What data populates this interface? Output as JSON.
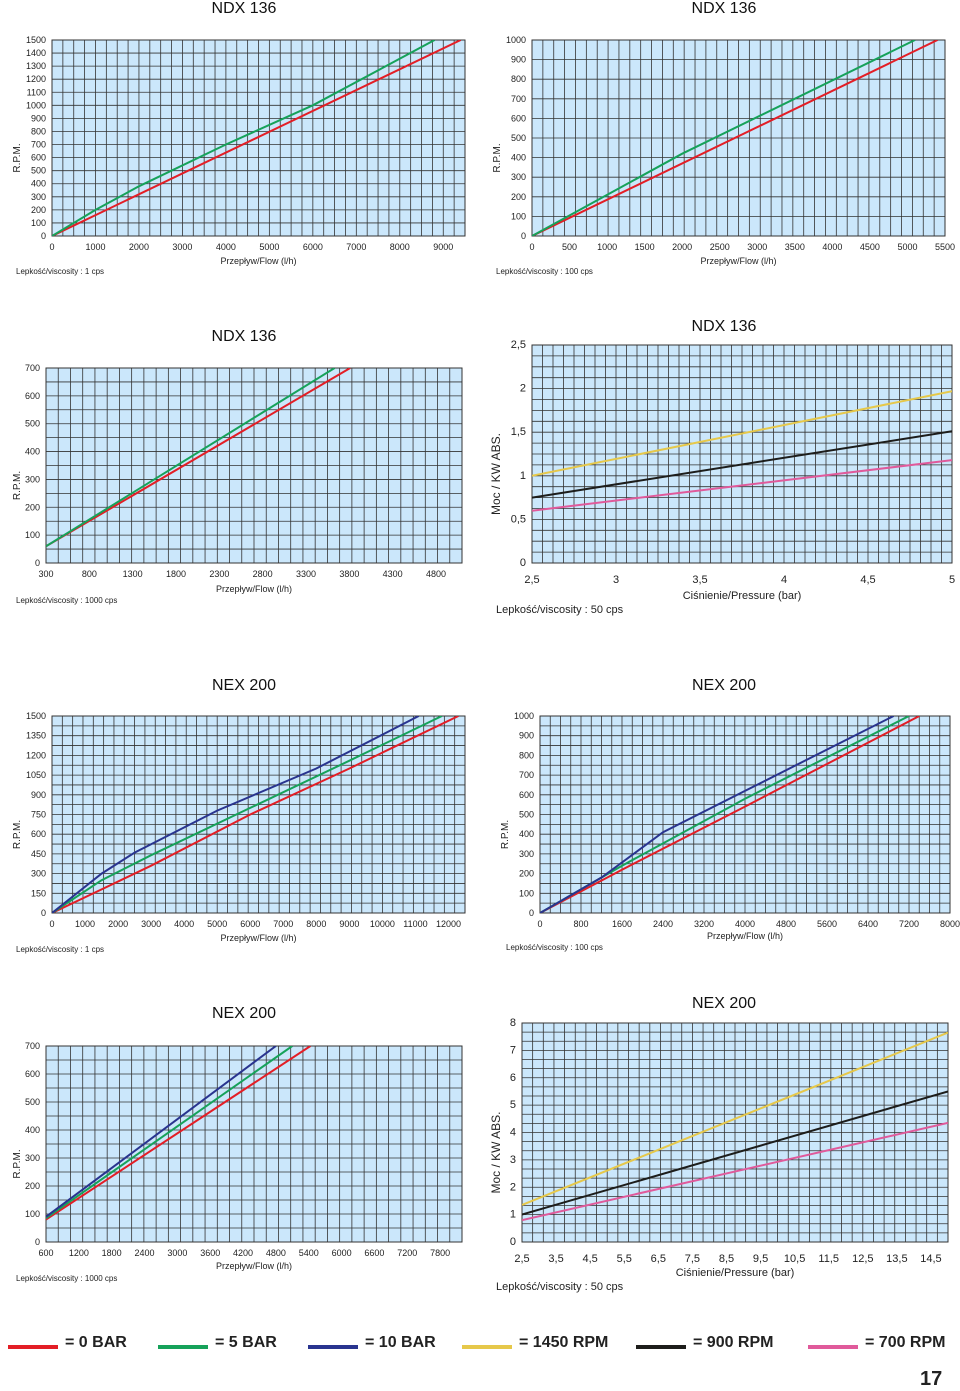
{
  "colors": {
    "grid_bg": "#cbe7fb",
    "grid_line": "#333333",
    "red": "#e31e26",
    "green": "#16a25a",
    "blue": "#29348f",
    "yellow": "#e6c84a",
    "black": "#1d1d1b",
    "pink": "#e05a9b"
  },
  "chart_data": [
    {
      "type": "line",
      "title": "NDX 136",
      "ylabel": "R.P.M.",
      "xlabel": "Przepływ/Flow (l/h)",
      "note": "Lepkość/viscosity : 1 cps",
      "xlim": [
        0,
        9500
      ],
      "ylim": [
        0,
        1500
      ],
      "xticks": [
        "0",
        "1000",
        "2000",
        "3000",
        "4000",
        "5000",
        "6000",
        "7000",
        "8000",
        "9000"
      ],
      "xtick_vals": [
        0,
        1000,
        2000,
        3000,
        4000,
        5000,
        6000,
        7000,
        8000,
        9000
      ],
      "yticks": [
        "0",
        "100",
        "200",
        "300",
        "400",
        "500",
        "600",
        "700",
        "800",
        "900",
        "1000",
        "1100",
        "1200",
        "1300",
        "1400",
        "1500"
      ],
      "ytick_vals": [
        0,
        100,
        200,
        300,
        400,
        500,
        600,
        700,
        800,
        900,
        1000,
        1100,
        1200,
        1300,
        1400,
        1500
      ],
      "series": [
        {
          "name": "= 0 BAR",
          "color": "red",
          "points": [
            [
              0,
              0
            ],
            [
              9400,
              1500
            ]
          ]
        },
        {
          "name": "= 5 BAR",
          "color": "green",
          "points": [
            [
              0,
              0
            ],
            [
              1000,
              200
            ],
            [
              2000,
              380
            ],
            [
              4000,
              700
            ],
            [
              6000,
              1000
            ],
            [
              8800,
              1500
            ]
          ]
        }
      ]
    },
    {
      "type": "line",
      "title": "NDX 136",
      "ylabel": "R.P.M.",
      "xlabel": "Przepływ/Flow (l/h)",
      "note": "Lepkość/viscosity : 100 cps",
      "xlim": [
        0,
        5500
      ],
      "ylim": [
        0,
        1000
      ],
      "xticks": [
        "0",
        "500",
        "1000",
        "1500",
        "2000",
        "2500",
        "3000",
        "3500",
        "4000",
        "4500",
        "5000",
        "5500"
      ],
      "xtick_vals": [
        0,
        500,
        1000,
        1500,
        2000,
        2500,
        3000,
        3500,
        4000,
        4500,
        5000,
        5500
      ],
      "yticks": [
        "0",
        "100",
        "200",
        "300",
        "400",
        "500",
        "600",
        "700",
        "800",
        "900",
        "1000"
      ],
      "ytick_vals": [
        0,
        100,
        200,
        300,
        400,
        500,
        600,
        700,
        800,
        900,
        1000
      ],
      "series": [
        {
          "name": "= 0 BAR",
          "color": "red",
          "points": [
            [
              0,
              0
            ],
            [
              5400,
              1000
            ]
          ]
        },
        {
          "name": "= 5 BAR",
          "color": "green",
          "points": [
            [
              0,
              0
            ],
            [
              2000,
              420
            ],
            [
              5100,
              1000
            ]
          ]
        }
      ]
    },
    {
      "type": "line",
      "title": "NDX 136",
      "ylabel": "R.P.M.",
      "xlabel": "Przepływ/Flow (l/h)",
      "note": "Lepkość/viscosity : 1000 cps",
      "xlim": [
        300,
        5100
      ],
      "ylim": [
        0,
        700
      ],
      "xticks": [
        "300",
        "800",
        "1300",
        "1800",
        "2300",
        "2800",
        "3300",
        "3800",
        "4300",
        "4800"
      ],
      "xtick_vals": [
        300,
        800,
        1300,
        1800,
        2300,
        2800,
        3300,
        3800,
        4300,
        4800
      ],
      "yticks": [
        "0",
        "100",
        "200",
        "300",
        "400",
        "500",
        "600",
        "700"
      ],
      "ytick_vals": [
        0,
        100,
        200,
        300,
        400,
        500,
        600,
        700
      ],
      "series": [
        {
          "name": "= 0 BAR",
          "color": "red",
          "points": [
            [
              300,
              60
            ],
            [
              3810,
              700
            ]
          ]
        },
        {
          "name": "= 5 BAR",
          "color": "green",
          "points": [
            [
              300,
              60
            ],
            [
              3630,
              700
            ]
          ]
        }
      ]
    },
    {
      "type": "line",
      "title": "NDX 136",
      "ylabel": "Moc / KW ABS.",
      "xlabel": "Ciśnienie/Pressure (bar)",
      "note": "Lepkość/viscosity : 50 cps",
      "xlim": [
        2.5,
        5
      ],
      "ylim": [
        0,
        2.5
      ],
      "xticks": [
        "2,5",
        "3",
        "3,5",
        "4",
        "4,5",
        "5"
      ],
      "xtick_vals": [
        2.5,
        3,
        3.5,
        4,
        4.5,
        5
      ],
      "yticks": [
        "0",
        "0,5",
        "1",
        "1,5",
        "2",
        "2,5"
      ],
      "ytick_vals": [
        0,
        0.5,
        1,
        1.5,
        2,
        2.5
      ],
      "series": [
        {
          "name": "= 1450 RPM",
          "color": "yellow",
          "points": [
            [
              2.5,
              1
            ],
            [
              5,
              1.97
            ]
          ]
        },
        {
          "name": "= 900 RPM",
          "color": "black",
          "points": [
            [
              2.5,
              0.75
            ],
            [
              5,
              1.51
            ]
          ]
        },
        {
          "name": "= 700 RPM",
          "color": "pink",
          "points": [
            [
              2.5,
              0.6
            ],
            [
              5,
              1.18
            ]
          ]
        }
      ]
    },
    {
      "type": "line",
      "title": "NEX 200",
      "ylabel": "R.P.M.",
      "xlabel": "Przepływ/Flow (l/h)",
      "note": "Lepkość/viscosity : 1 cps",
      "xlim": [
        0,
        12500
      ],
      "ylim": [
        0,
        1500
      ],
      "xticks": [
        "0",
        "1000",
        "2000",
        "3000",
        "4000",
        "5000",
        "6000",
        "7000",
        "8000",
        "9000",
        "10000",
        "11000",
        "12000"
      ],
      "xtick_vals": [
        0,
        1000,
        2000,
        3000,
        4000,
        5000,
        6000,
        7000,
        8000,
        9000,
        10000,
        11000,
        12000
      ],
      "yticks": [
        "0",
        "150",
        "300",
        "450",
        "600",
        "750",
        "900",
        "1050",
        "1200",
        "1350",
        "1500"
      ],
      "ytick_vals": [
        0,
        150,
        300,
        450,
        600,
        750,
        900,
        1050,
        1200,
        1350,
        1500
      ],
      "series": [
        {
          "name": "= 0 BAR",
          "color": "red",
          "points": [
            [
              0,
              0
            ],
            [
              1500,
              180
            ],
            [
              3000,
              360
            ],
            [
              6000,
              750
            ],
            [
              9000,
              1100
            ],
            [
              12300,
              1500
            ]
          ]
        },
        {
          "name": "= 5 BAR",
          "color": "green",
          "points": [
            [
              0,
              0
            ],
            [
              1500,
              250
            ],
            [
              3000,
              440
            ],
            [
              6000,
              800
            ],
            [
              9000,
              1160
            ],
            [
              11800,
              1500
            ]
          ]
        },
        {
          "name": "= 10 BAR",
          "color": "blue",
          "points": [
            [
              0,
              0
            ],
            [
              1500,
              300
            ],
            [
              2500,
              460
            ],
            [
              5000,
              780
            ],
            [
              8000,
              1100
            ],
            [
              11100,
              1500
            ]
          ]
        }
      ]
    },
    {
      "type": "line",
      "title": "NEX 200",
      "ylabel": "R.P.M.",
      "xlabel": "Przepływ/Flow (l/h)",
      "note": "Lepkość/viscosity : 100 cps",
      "xlim": [
        0,
        8000
      ],
      "ylim": [
        0,
        1000
      ],
      "xticks": [
        "0",
        "800",
        "1600",
        "2400",
        "3200",
        "4000",
        "4800",
        "5600",
        "6400",
        "7200",
        "8000"
      ],
      "xtick_vals": [
        0,
        800,
        1600,
        2400,
        3200,
        4000,
        4800,
        5600,
        6400,
        7200,
        8000
      ],
      "yticks": [
        "0",
        "100",
        "200",
        "300",
        "400",
        "500",
        "600",
        "700",
        "800",
        "900",
        "1000"
      ],
      "ytick_vals": [
        0,
        100,
        200,
        300,
        400,
        500,
        600,
        700,
        800,
        900,
        1000
      ],
      "series": [
        {
          "name": "= 0 BAR",
          "color": "red",
          "points": [
            [
              0,
              0
            ],
            [
              1600,
              220
            ],
            [
              4000,
              540
            ],
            [
              7400,
              1000
            ]
          ]
        },
        {
          "name": "= 5 BAR",
          "color": "green",
          "points": [
            [
              0,
              0
            ],
            [
              1600,
              240
            ],
            [
              4000,
              580
            ],
            [
              7200,
              1000
            ]
          ]
        },
        {
          "name": "= 10 BAR",
          "color": "blue",
          "points": [
            [
              0,
              0
            ],
            [
              1200,
              180
            ],
            [
              2400,
              410
            ],
            [
              4000,
              620
            ],
            [
              6900,
              1000
            ]
          ]
        }
      ]
    },
    {
      "type": "line",
      "title": "NEX 200",
      "ylabel": "R.P.M.",
      "xlabel": "Przepływ/Flow (l/h)",
      "note": "Lepkość/viscosity : 1000 cps",
      "xlim": [
        600,
        8200
      ],
      "ylim": [
        0,
        700
      ],
      "xticks": [
        "600",
        "1200",
        "1800",
        "2400",
        "3000",
        "3600",
        "4200",
        "4800",
        "5400",
        "6000",
        "6600",
        "7200",
        "7800"
      ],
      "xtick_vals": [
        600,
        1200,
        1800,
        2400,
        3000,
        3600,
        4200,
        4800,
        5400,
        6000,
        6600,
        7200,
        7800
      ],
      "yticks": [
        "0",
        "100",
        "200",
        "300",
        "400",
        "500",
        "600",
        "700"
      ],
      "ytick_vals": [
        0,
        100,
        200,
        300,
        400,
        500,
        600,
        700
      ],
      "series": [
        {
          "name": "= 0 BAR",
          "color": "red",
          "points": [
            [
              600,
              80
            ],
            [
              5430,
              700
            ]
          ]
        },
        {
          "name": "= 5 BAR",
          "color": "green",
          "points": [
            [
              600,
              85
            ],
            [
              5100,
              700
            ]
          ]
        },
        {
          "name": "= 10 BAR",
          "color": "blue",
          "points": [
            [
              600,
              90
            ],
            [
              4800,
              700
            ]
          ]
        }
      ]
    },
    {
      "type": "line",
      "title": "NEX 200",
      "ylabel": "Moc / KW ABS.",
      "xlabel": "Ciśnienie/Pressure (bar)",
      "note": "Lepkość/viscosity : 50 cps",
      "xlim": [
        2.5,
        15
      ],
      "ylim": [
        0,
        8
      ],
      "xticks": [
        "2,5",
        "3,5",
        "4,5",
        "5,5",
        "6,5",
        "7,5",
        "8,5",
        "9,5",
        "10,5",
        "11,5",
        "12,5",
        "13,5",
        "14,5"
      ],
      "xtick_vals": [
        2.5,
        3.5,
        4.5,
        5.5,
        6.5,
        7.5,
        8.5,
        9.5,
        10.5,
        11.5,
        12.5,
        13.5,
        14.5
      ],
      "yticks": [
        "0",
        "1",
        "2",
        "3",
        "4",
        "5",
        "6",
        "7",
        "8"
      ],
      "ytick_vals": [
        0,
        1,
        2,
        3,
        4,
        5,
        6,
        7,
        8
      ],
      "series": [
        {
          "name": "= 1450 RPM",
          "color": "yellow",
          "points": [
            [
              2.5,
              1.35
            ],
            [
              15,
              7.65
            ]
          ]
        },
        {
          "name": "= 900 RPM",
          "color": "black",
          "points": [
            [
              2.5,
              1.0
            ],
            [
              15,
              5.5
            ]
          ]
        },
        {
          "name": "= 700 RPM",
          "color": "pink",
          "points": [
            [
              2.5,
              0.8
            ],
            [
              15,
              4.35
            ]
          ]
        }
      ]
    }
  ],
  "legend": [
    {
      "label": "= 0 BAR",
      "color": "red"
    },
    {
      "label": "= 5 BAR",
      "color": "green"
    },
    {
      "label": "= 10 BAR",
      "color": "blue"
    },
    {
      "label": "= 1450 RPM",
      "color": "yellow"
    },
    {
      "label": "= 900 RPM",
      "color": "black"
    },
    {
      "label": "= 700 RPM",
      "color": "pink"
    }
  ],
  "page_number": "17"
}
